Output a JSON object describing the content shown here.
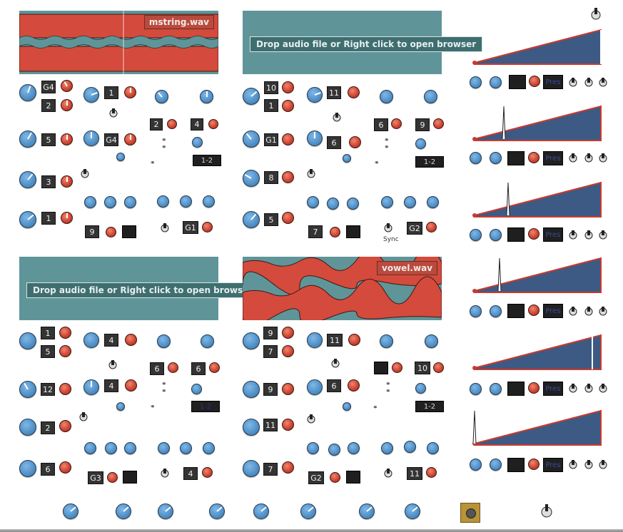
{
  "samplers": [
    {
      "id": "s1",
      "loaded": true,
      "file": "mstring.wav"
    },
    {
      "id": "s2",
      "loaded": false,
      "hint": "Drop audio file or Right click to open browser"
    },
    {
      "id": "s3",
      "loaded": false,
      "hint": "Drop audio file or Right click to open browser"
    },
    {
      "id": "s4",
      "loaded": true,
      "file": "vowel.wav"
    }
  ],
  "panels": [
    {
      "note_boxes": [
        "G4",
        "2",
        "5",
        "3",
        "1"
      ],
      "mid_boxes": [
        "1",
        "G4"
      ],
      "right_boxes": [
        "2",
        "4"
      ],
      "mode": "1-2",
      "bottom_boxes": [
        "9",
        "G1"
      ]
    },
    {
      "note_boxes": [
        "10",
        "1",
        "G1",
        "8",
        "5"
      ],
      "mid_boxes": [
        "11",
        "6"
      ],
      "right_boxes": [
        "6",
        "9"
      ],
      "mode": "1-2",
      "bottom_boxes": [
        "7",
        "G2"
      ],
      "sync_label": "Sync"
    },
    {
      "note_boxes": [
        "1",
        "5",
        "12",
        "2",
        "6"
      ],
      "mid_boxes": [
        "4",
        "4"
      ],
      "right_boxes": [
        "6",
        "6"
      ],
      "mode": "1-2",
      "bottom_boxes": [
        "G3",
        "4"
      ]
    },
    {
      "note_boxes": [
        "9",
        "7",
        "9",
        "11",
        "7"
      ],
      "mid_boxes": [
        "11",
        "6"
      ],
      "right_boxes": [
        "",
        "10"
      ],
      "mode": "1-2",
      "bottom_boxes": [
        "G2",
        "11"
      ]
    }
  ],
  "env_rows": [
    {
      "mode_label": "Pres"
    },
    {
      "mode_label": "Pres"
    },
    {
      "mode_label": "Pres"
    },
    {
      "mode_label": "Pres"
    },
    {
      "mode_label": "Pres"
    },
    {
      "mode_label": "Pres"
    }
  ],
  "colors": {
    "sampler_bg": "#5f9598",
    "wave": "#d44a3c",
    "env_fill": "#3c5a84",
    "knob_blue": "#4f8fc6",
    "knob_red": "#c9412f",
    "pad": "#b89337"
  }
}
